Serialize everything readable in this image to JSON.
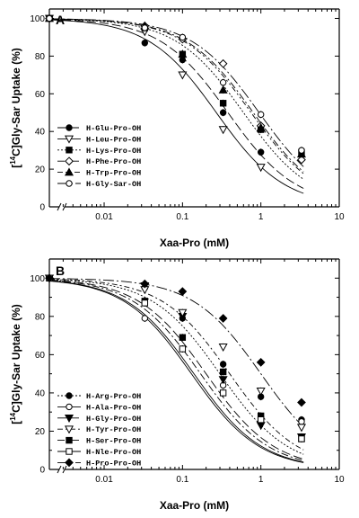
{
  "chart_data": [
    {
      "type": "line",
      "panel": "A",
      "ylabel": "[14C]Gly-Sar Uptake (%)",
      "ylabel_sup": "14",
      "ylabel_pre": "[",
      "ylabel_post": "C]Gly-Sar Uptake (%)",
      "xlabel": "Xaa-Pro (mM)",
      "xscale": "log",
      "xlim": [
        0.002,
        10
      ],
      "ylim": [
        0,
        105
      ],
      "xticks": [
        {
          "v": 0.01,
          "label": "0.01"
        },
        {
          "v": 0.1,
          "label": "0.1"
        },
        {
          "v": 1,
          "label": "1"
        },
        {
          "v": 10,
          "label": "10"
        }
      ],
      "yticks": [
        0,
        20,
        40,
        60,
        80,
        100
      ],
      "legend_position": "left",
      "series": [
        {
          "name": "H-Glu-Pro-OH",
          "marker": "circle-filled",
          "dash": "10,4",
          "ic50": 0.38,
          "x": [
            0.002,
            0.033,
            0.1,
            0.33,
            1.0
          ],
          "y": [
            100,
            87,
            78,
            50,
            29
          ]
        },
        {
          "name": "H-Leu-Pro-OH",
          "marker": "tri-down-open",
          "dash": "none",
          "ic50": 0.27,
          "x": [
            0.002,
            0.033,
            0.1,
            0.33,
            1.0
          ],
          "y": [
            100,
            93,
            70,
            41,
            21
          ]
        },
        {
          "name": "H-Lys-Pro-OH",
          "marker": "square-filled",
          "dash": "2,2",
          "ic50": 0.6,
          "x": [
            0.002,
            0.033,
            0.1,
            0.33,
            1.0,
            3.3
          ],
          "y": [
            100,
            95,
            81,
            55,
            41,
            29
          ]
        },
        {
          "name": "H-Phe-Pro-OH",
          "marker": "diamond-open",
          "dash": "8,3,2,3",
          "ic50": 0.8,
          "x": [
            0.002,
            0.033,
            0.1,
            0.33,
            1.0,
            3.3
          ],
          "y": [
            100,
            96,
            89,
            76,
            43,
            25
          ]
        },
        {
          "name": "H-Trp-Pro-OH",
          "marker": "tri-up-filled",
          "dash": "6,3,2,3,2,3",
          "ic50": 0.75,
          "x": [
            0.002,
            0.033,
            0.1,
            0.33,
            1.0,
            3.3
          ],
          "y": [
            100,
            96,
            81,
            62,
            42,
            28
          ]
        },
        {
          "name": "H-Gly-Sar-OH",
          "marker": "circle-open",
          "dash": "12,3,2,3",
          "ic50": 0.95,
          "x": [
            0.002,
            0.033,
            0.1,
            0.33,
            1.0,
            3.3
          ],
          "y": [
            100,
            95,
            90,
            66,
            49,
            30
          ]
        }
      ]
    },
    {
      "type": "line",
      "panel": "B",
      "ylabel": "[14C]Gly-Sar Uptake (%)",
      "ylabel_sup": "14",
      "ylabel_pre": "[",
      "ylabel_post": "C]Gly-Sar Uptake (%)",
      "xlabel": "Xaa-Pro (mM)",
      "xscale": "log",
      "xlim": [
        0.002,
        10
      ],
      "ylim": [
        0,
        110
      ],
      "xticks": [
        {
          "v": 0.01,
          "label": "0.01"
        },
        {
          "v": 0.1,
          "label": "0.1"
        },
        {
          "v": 1,
          "label": "1"
        },
        {
          "v": 10,
          "label": "10"
        }
      ],
      "yticks": [
        0,
        10,
        20,
        30,
        40,
        50,
        60,
        70,
        80,
        90,
        100,
        110
      ],
      "yticklabels": [
        0,
        20,
        40,
        60,
        80,
        100
      ],
      "legend_position": "left",
      "series": [
        {
          "name": "H-Arg-Pro-OH",
          "marker": "circle-filled",
          "dash": "2,2",
          "ic50": 0.3,
          "x": [
            0.002,
            0.033,
            0.1,
            0.33,
            1.0,
            3.3
          ],
          "y": [
            100,
            95,
            79,
            55,
            38,
            26
          ]
        },
        {
          "name": "H-Ala-Pro-OH",
          "marker": "circle-open",
          "dash": "none",
          "ic50": 0.13,
          "x": [
            0.002,
            0.033,
            0.1,
            0.33,
            1.0,
            3.3
          ],
          "y": [
            100,
            79,
            63,
            44,
            27,
            25
          ]
        },
        {
          "name": "H-Gly-Pro-OH",
          "marker": "tri-down-filled",
          "dash": "10,4",
          "ic50": 0.2,
          "x": [
            0.002,
            0.033,
            0.1,
            0.33,
            1.0,
            3.3
          ],
          "y": [
            100,
            96,
            80,
            47,
            23,
            17
          ]
        },
        {
          "name": "H-Tyr-Pro-OH",
          "marker": "tri-down-open",
          "dash": "6,3,2,3",
          "ic50": 0.4,
          "x": [
            0.002,
            0.033,
            0.1,
            0.33,
            1.0,
            3.3
          ],
          "y": [
            100,
            94,
            82,
            64,
            41,
            22
          ]
        },
        {
          "name": "H-Ser-Pro-OH",
          "marker": "square-filled",
          "dash": "8,3,2,3",
          "ic50": 0.17,
          "x": [
            0.002,
            0.033,
            0.1,
            0.33,
            1.0,
            3.3
          ],
          "y": [
            100,
            88,
            69,
            51,
            28,
            16
          ]
        },
        {
          "name": "H-Nle-Pro-OH",
          "marker": "square-open",
          "dash": "none",
          "ic50": 0.14,
          "x": [
            0.002,
            0.033,
            0.1,
            0.33,
            1.0,
            3.3
          ],
          "y": [
            100,
            87,
            63,
            40,
            26,
            16
          ]
        },
        {
          "name": "H-Pro-Pro-OH",
          "marker": "diamond-filled",
          "dash": "12,3,2,3",
          "ic50": 1.0,
          "x": [
            0.002,
            0.033,
            0.1,
            0.33,
            1.0,
            3.3
          ],
          "y": [
            100,
            97,
            93,
            79,
            56,
            35
          ]
        }
      ]
    }
  ]
}
